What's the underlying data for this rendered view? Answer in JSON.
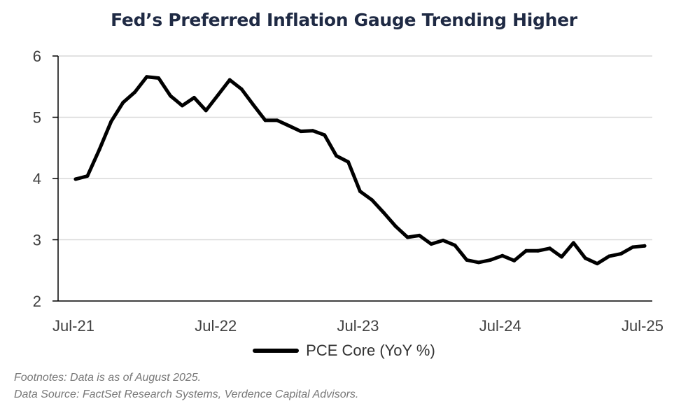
{
  "chart_data": {
    "type": "line",
    "title": "Fed’s Preferred Inflation Gauge Trending Higher",
    "xlabel": "",
    "ylabel": "",
    "ylim": [
      2,
      6
    ],
    "yticks": [
      "2",
      "3",
      "4",
      "5",
      "6"
    ],
    "xticks": [
      "Jul-21",
      "Jul-22",
      "Jul-23",
      "Jul-24",
      "Jul-25"
    ],
    "grid": true,
    "legend_position": "bottom-center",
    "series": [
      {
        "name": "PCE Core (YoY %)",
        "color": "#000000",
        "x": [
          "Jul-21",
          "Aug-21",
          "Sep-21",
          "Oct-21",
          "Nov-21",
          "Dec-21",
          "Jan-22",
          "Feb-22",
          "Mar-22",
          "Apr-22",
          "May-22",
          "Jun-22",
          "Jul-22",
          "Aug-22",
          "Sep-22",
          "Oct-22",
          "Nov-22",
          "Dec-22",
          "Jan-23",
          "Feb-23",
          "Mar-23",
          "Apr-23",
          "May-23",
          "Jun-23",
          "Jul-23",
          "Aug-23",
          "Sep-23",
          "Oct-23",
          "Nov-23",
          "Dec-23",
          "Jan-24",
          "Feb-24",
          "Mar-24",
          "Apr-24",
          "May-24",
          "Jun-24",
          "Jul-24",
          "Aug-24",
          "Sep-24",
          "Oct-24",
          "Nov-24",
          "Dec-24",
          "Jan-25",
          "Feb-25",
          "Mar-25",
          "Apr-25",
          "May-25",
          "Jun-25",
          "Jul-25"
        ],
        "values": [
          3.99,
          4.04,
          4.47,
          4.93,
          5.24,
          5.41,
          5.66,
          5.64,
          5.35,
          5.19,
          5.32,
          5.11,
          5.36,
          5.61,
          5.46,
          5.2,
          4.95,
          4.95,
          4.86,
          4.77,
          4.78,
          4.71,
          4.37,
          4.27,
          3.79,
          3.65,
          3.44,
          3.22,
          3.04,
          3.07,
          2.93,
          2.99,
          2.91,
          2.67,
          2.63,
          2.67,
          2.74,
          2.66,
          2.82,
          2.82,
          2.86,
          2.72,
          2.95,
          2.7,
          2.61,
          2.73,
          2.77,
          2.88,
          2.9
        ]
      }
    ]
  },
  "footnotes": {
    "line1": "Footnotes: Data is as of August 2025.",
    "line2": "Data Source: FactSet Research Systems, Verdence Capital Advisors."
  }
}
